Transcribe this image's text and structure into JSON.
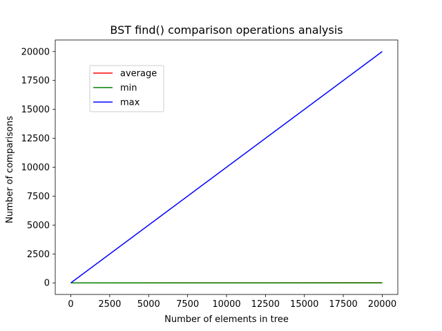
{
  "chart_data": {
    "type": "line",
    "title": "BST find() comparison operations analysis",
    "xlabel": "Number of elements in tree",
    "ylabel": "Number of comparisons",
    "xlim": [
      -1000,
      21000
    ],
    "ylim": [
      -1000,
      21000
    ],
    "xticks": [
      0,
      2500,
      5000,
      7500,
      10000,
      12500,
      15000,
      17500,
      20000
    ],
    "yticks": [
      0,
      2500,
      5000,
      7500,
      10000,
      12500,
      15000,
      17500,
      20000
    ],
    "grid": false,
    "legend": {
      "placement": "upper-left"
    },
    "x": [
      0,
      20000
    ],
    "series": [
      {
        "name": "average",
        "color": "#ff0000",
        "values": [
          0,
          15
        ]
      },
      {
        "name": "min",
        "color": "#008000",
        "values": [
          0,
          1
        ]
      },
      {
        "name": "max",
        "color": "#0000ff",
        "values": [
          0,
          20000
        ]
      }
    ]
  }
}
